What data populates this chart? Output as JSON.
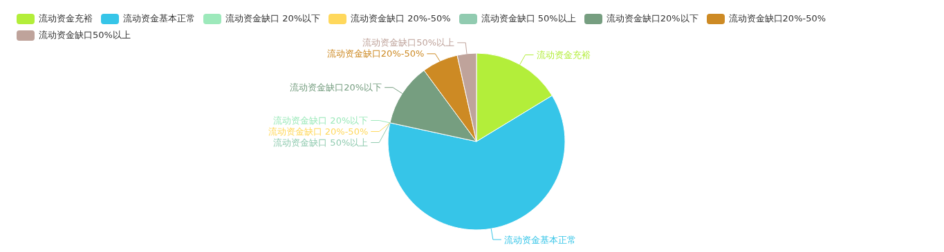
{
  "chart_data": {
    "type": "pie",
    "legend": "top left",
    "categories": [
      "流动资金充裕",
      "流动资金基本正常",
      "流动资金缺口 20%以下",
      "流动资金缺口 20%-50%",
      "流动资金缺口 50%以上",
      "流动资金缺口20%以下",
      "流动资金缺口20%-50%",
      "流动资金缺口50%以上"
    ],
    "values": [
      16.3,
      62.1,
      0,
      0,
      0,
      11.5,
      6.6,
      3.5
    ],
    "colors": [
      "#b3ee3a",
      "#36c5e8",
      "#9de9bb",
      "#ffd85c",
      "#91cbb0",
      "#769e80",
      "#cd8a24",
      "#bfa39b"
    ]
  }
}
